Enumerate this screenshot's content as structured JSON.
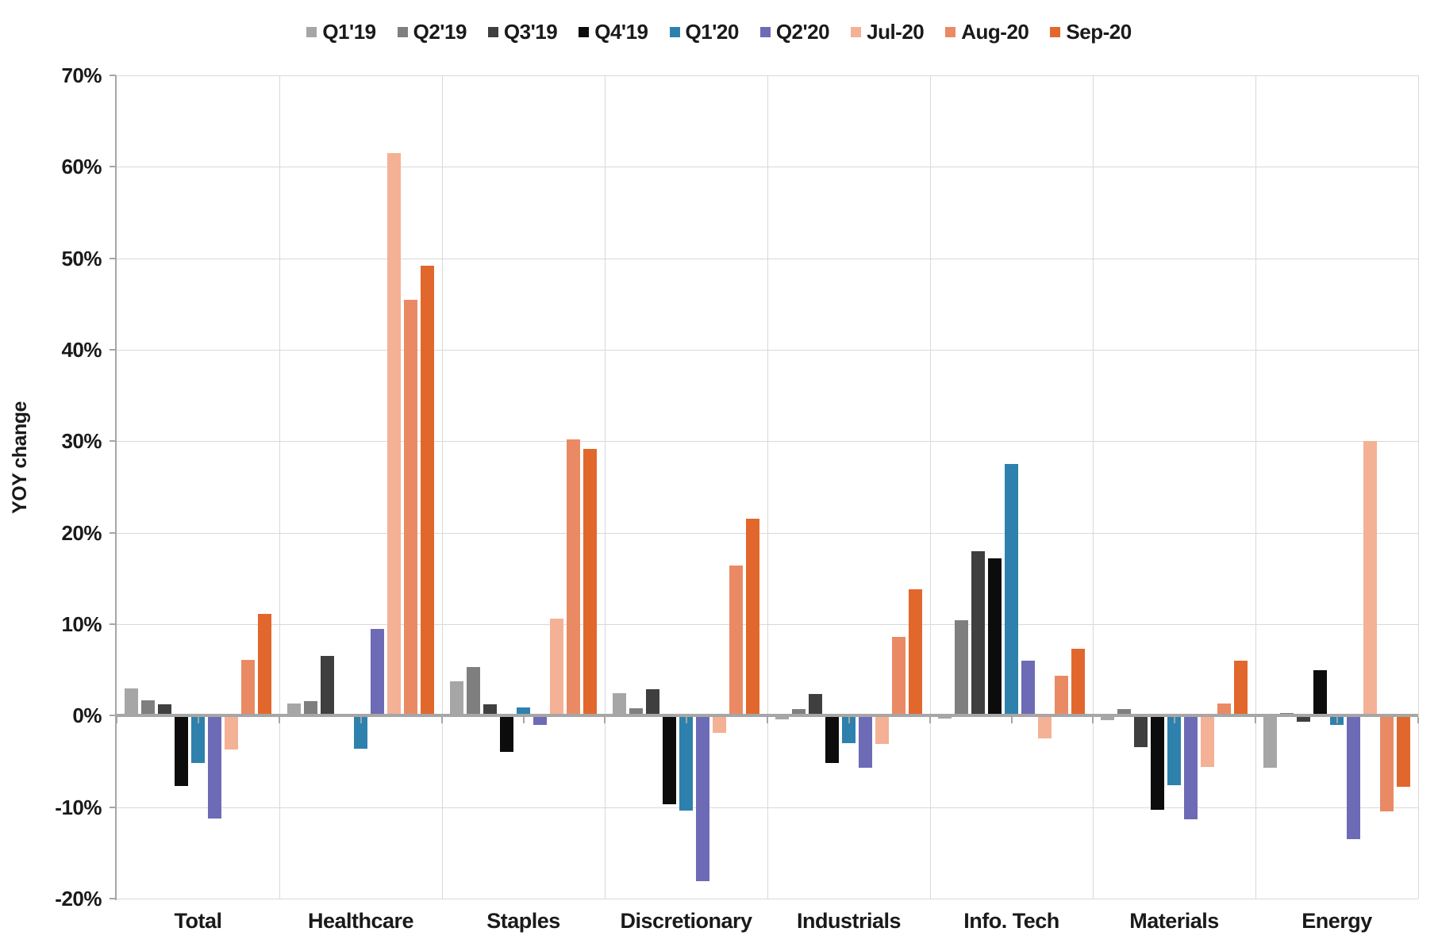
{
  "chart_data": {
    "type": "bar",
    "title": "",
    "xlabel": "",
    "ylabel": "YOY change",
    "ylim": [
      -20,
      70
    ],
    "ytick_step": 10,
    "ytick_format": "percent",
    "grid": true,
    "legend_position": "top",
    "categories": [
      "Total",
      "Healthcare",
      "Staples",
      "Discretionary",
      "Industrials",
      "Info. Tech",
      "Materials",
      "Energy"
    ],
    "series": [
      {
        "name": "Q1'19",
        "color": "#a6a6a6",
        "values": [
          3.0,
          1.3,
          3.8,
          2.5,
          -0.4,
          -0.3,
          -0.5,
          -5.7
        ]
      },
      {
        "name": "Q2'19",
        "color": "#7f7f7f",
        "values": [
          1.7,
          1.6,
          5.3,
          0.8,
          0.7,
          10.4,
          0.7,
          0.3
        ]
      },
      {
        "name": "Q3'19",
        "color": "#3f3f3f",
        "values": [
          1.2,
          6.5,
          1.2,
          2.9,
          2.4,
          18.0,
          -3.4,
          -0.7
        ]
      },
      {
        "name": "Q4'19",
        "color": "#0c0c0c",
        "values": [
          -7.7,
          0.2,
          -4.0,
          -9.7,
          -5.2,
          17.2,
          -10.3,
          5.0
        ]
      },
      {
        "name": "Q1'20",
        "color": "#2e81ad",
        "values": [
          -5.2,
          -3.6,
          0.9,
          -10.4,
          -3.0,
          27.5,
          -7.6,
          -1.0
        ]
      },
      {
        "name": "Q2'20",
        "color": "#6d6bb5",
        "values": [
          -11.2,
          9.5,
          -1.0,
          -18.1,
          -5.7,
          6.0,
          -11.3,
          -13.5
        ]
      },
      {
        "name": "Jul-20",
        "color": "#f4b195",
        "values": [
          -3.7,
          61.5,
          10.6,
          -1.9,
          -3.1,
          -2.5,
          -5.6,
          30.0
        ]
      },
      {
        "name": "Aug-20",
        "color": "#e98a64",
        "values": [
          6.1,
          45.5,
          30.2,
          16.4,
          8.6,
          4.4,
          1.3,
          -10.5
        ]
      },
      {
        "name": "Sep-20",
        "color": "#e2672d",
        "values": [
          11.1,
          49.2,
          29.2,
          21.5,
          13.8,
          7.3,
          6.0,
          -7.8
        ]
      }
    ]
  }
}
